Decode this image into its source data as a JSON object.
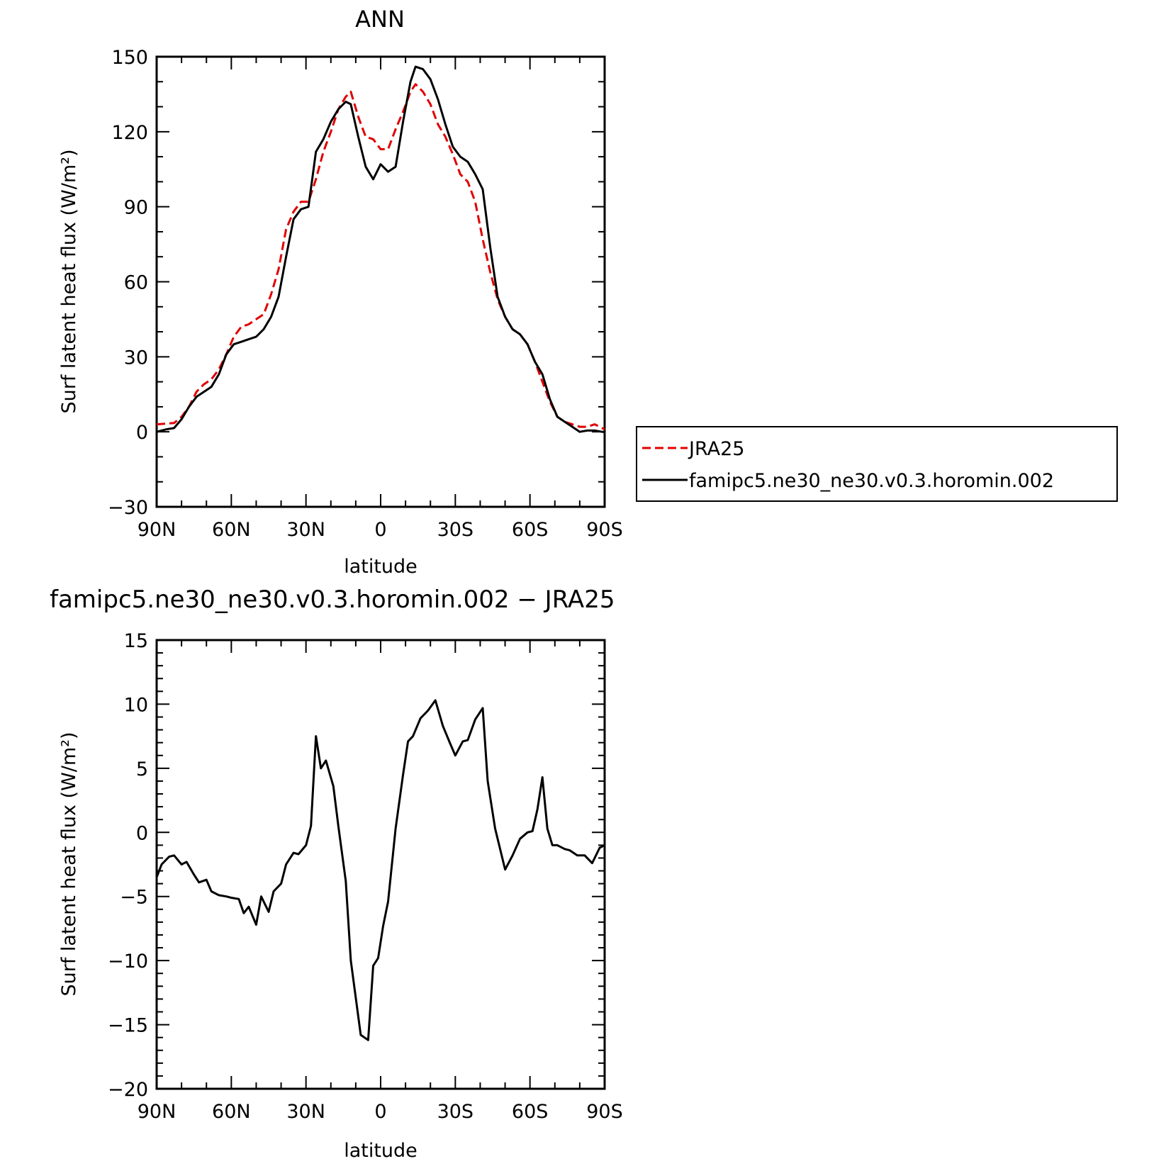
{
  "chart_data": [
    {
      "type": "line",
      "title": "ANN",
      "xlabel": "latitude",
      "ylabel": "Surf latent heat flux (W/m²)",
      "xlim": [
        -90,
        90
      ],
      "ylim": [
        -30,
        150
      ],
      "xticks": [
        -90,
        -60,
        -30,
        0,
        30,
        60,
        90
      ],
      "xtick_labels": [
        "90N",
        "60N",
        "30N",
        "0",
        "30S",
        "60S",
        "90S"
      ],
      "yticks": [
        -30,
        0,
        30,
        60,
        90,
        120,
        150
      ],
      "ytick_labels": [
        "−30",
        "0",
        "30",
        "60",
        "90",
        "120",
        "150"
      ],
      "legend_placement": "right",
      "series": [
        {
          "name": "JRA25",
          "color": "#e00000",
          "dash": "dashed",
          "x": [
            -90,
            -83,
            -80,
            -77,
            -74,
            -71,
            -68,
            -65,
            -62,
            -59,
            -56,
            -53,
            -50,
            -47,
            -44,
            -41,
            -38,
            -35,
            -32,
            -29,
            -26,
            -23,
            -20,
            -17,
            -14,
            -12,
            -9,
            -6,
            -3,
            0,
            3,
            6,
            9,
            12,
            14,
            17,
            20,
            23,
            26,
            29,
            32,
            35,
            38,
            41,
            44,
            47,
            50,
            53,
            56,
            59,
            62,
            65,
            68,
            71,
            74,
            77,
            80,
            83,
            86,
            89,
            90
          ],
          "y": [
            3,
            3.5,
            6,
            10,
            16,
            19,
            21,
            25,
            31,
            38,
            42,
            43,
            45,
            47,
            55,
            65,
            81,
            88,
            92,
            92,
            101,
            112,
            120,
            129,
            134,
            136,
            126,
            118,
            117,
            113,
            113,
            121,
            128,
            136,
            139,
            136,
            131,
            123,
            118,
            111,
            103,
            100,
            92,
            77,
            64,
            53,
            46,
            41,
            39,
            35,
            28,
            20,
            12,
            6,
            4,
            3,
            2,
            2,
            3,
            1.5,
            1
          ]
        },
        {
          "name": "famipc5.ne30_ne30.v0.3.horomin.002",
          "color": "#000000",
          "dash": "solid",
          "x": [
            -90,
            -86,
            -83,
            -80,
            -77,
            -74,
            -71,
            -68,
            -65,
            -62,
            -59,
            -56,
            -53,
            -50,
            -47,
            -44,
            -41,
            -38,
            -35,
            -32,
            -29,
            -26,
            -23,
            -20,
            -17,
            -14,
            -12,
            -9,
            -6,
            -3,
            0,
            3,
            6,
            9,
            12,
            14,
            17,
            20,
            23,
            26,
            29,
            32,
            35,
            38,
            41,
            44,
            47,
            50,
            53,
            56,
            59,
            62,
            65,
            68,
            71,
            74,
            77,
            80,
            83,
            86,
            89,
            90
          ],
          "y": [
            0,
            1,
            1.5,
            5,
            10,
            14,
            16,
            18,
            23,
            31,
            35,
            36,
            37,
            38,
            41,
            46,
            54,
            70,
            85,
            89,
            90,
            112,
            117,
            124,
            129,
            132,
            131,
            118,
            106,
            101,
            107,
            104,
            106,
            124,
            140,
            146,
            145,
            141,
            133,
            123,
            114,
            110,
            108,
            103,
            97,
            74,
            54,
            46,
            41,
            39,
            35,
            28,
            23,
            13,
            6,
            4,
            2,
            0,
            0.5,
            0.5,
            0,
            0
          ]
        }
      ]
    },
    {
      "type": "line",
      "title": "famipc5.ne30_ne30.v0.3.horomin.002 − JRA25",
      "xlabel": "latitude",
      "ylabel": "Surf latent heat flux (W/m²)",
      "xlim": [
        -90,
        90
      ],
      "ylim": [
        -20,
        15
      ],
      "xticks": [
        -90,
        -60,
        -30,
        0,
        30,
        60,
        90
      ],
      "xtick_labels": [
        "90N",
        "60N",
        "30N",
        "0",
        "30S",
        "60S",
        "90S"
      ],
      "yticks": [
        -20,
        -15,
        -10,
        -5,
        0,
        5,
        10,
        15
      ],
      "ytick_labels": [
        "−20",
        "−15",
        "−10",
        "−5",
        "0",
        "5",
        "10",
        "15"
      ],
      "series": [
        {
          "color": "#000000",
          "dash": "solid",
          "x": [
            -90,
            -88,
            -85,
            -83,
            -80,
            -78,
            -75,
            -73,
            -70,
            -68,
            -65,
            -62,
            -60,
            -57,
            -55,
            -53,
            -50,
            -48,
            -45,
            -43,
            -40,
            -38,
            -35,
            -33,
            -30,
            -28,
            -26,
            -24,
            -22,
            -19,
            -17,
            -14,
            -12,
            -8,
            -5,
            -3,
            -1,
            1,
            3,
            6,
            9,
            11,
            13,
            16,
            19,
            22,
            25,
            28,
            30,
            33,
            35,
            38,
            41,
            43,
            46,
            50,
            53,
            56,
            59,
            61,
            63,
            65,
            67,
            69,
            71,
            74,
            76,
            79,
            82,
            85,
            88,
            90
          ],
          "y": [
            -3.5,
            -2.5,
            -1.9,
            -1.8,
            -2.5,
            -2.3,
            -3.3,
            -3.9,
            -3.7,
            -4.6,
            -4.9,
            -5,
            -5.1,
            -5.2,
            -6.3,
            -5.8,
            -7.2,
            -5,
            -6.2,
            -4.6,
            -4,
            -2.5,
            -1.6,
            -1.7,
            -1,
            0.5,
            7.5,
            5,
            5.6,
            3.6,
            0.5,
            -3.8,
            -10,
            -15.8,
            -16.2,
            -10.4,
            -9.8,
            -7.3,
            -5.4,
            0.3,
            4.5,
            7.1,
            7.5,
            8.9,
            9.5,
            10.3,
            8.3,
            6.9,
            6,
            7.1,
            7.2,
            8.8,
            9.7,
            4,
            0.3,
            -2.9,
            -1.8,
            -0.5,
            0,
            0.1,
            1.8,
            4.3,
            0.3,
            -1,
            -1,
            -1.3,
            -1.4,
            -1.8,
            -1.8,
            -2.4,
            -1.2,
            -1
          ]
        }
      ]
    }
  ]
}
